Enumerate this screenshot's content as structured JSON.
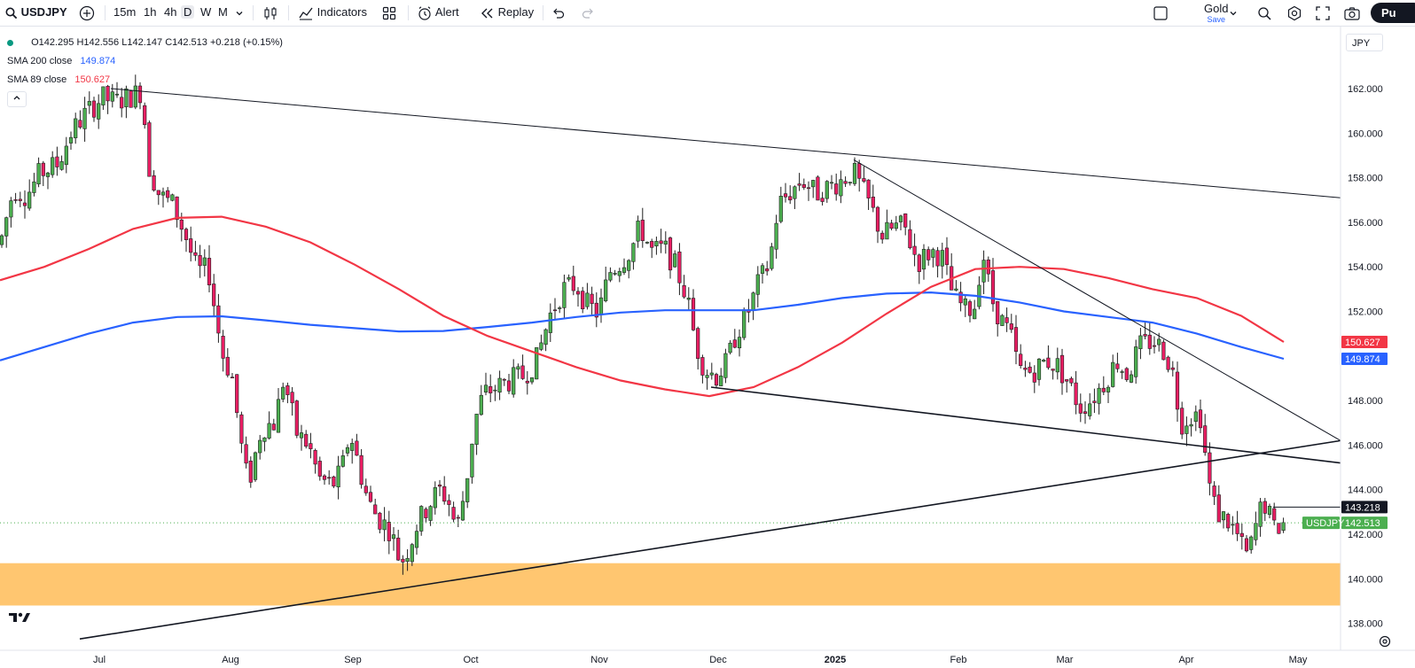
{
  "toolbar": {
    "symbol": "USDJPY",
    "timeframes": [
      "15m",
      "1h",
      "4h",
      "D",
      "W",
      "M"
    ],
    "active_timeframe": "D",
    "indicators_label": "Indicators",
    "alert_label": "Alert",
    "replay_label": "Replay",
    "layout_name": "Gold",
    "save_label": "Save",
    "publish_label": "Pu"
  },
  "legend": {
    "ohlc": {
      "o": "O142.295",
      "h": "H142.556",
      "l": "L142.147",
      "c": "C142.513",
      "chg": "+0.218 (+0.15%)"
    },
    "sma200": {
      "label": "SMA 200 close",
      "value": "149.874",
      "color": "#2962ff"
    },
    "sma89": {
      "label": "SMA 89 close",
      "value": "150.627",
      "color": "#f23645"
    }
  },
  "currency": "JPY",
  "colors": {
    "up": "#089981",
    "down": "#f23645",
    "body_up": "#4caf50",
    "body_down": "#e91e63",
    "zone": "#ffc670"
  },
  "chart_data": {
    "type": "candlestick",
    "y_ticks": [
      "162.000",
      "160.000",
      "158.000",
      "156.000",
      "154.000",
      "152.000",
      "150.000",
      "148.000",
      "146.000",
      "144.000",
      "142.000",
      "140.000",
      "138.000"
    ],
    "x_ticks": [
      "Jul",
      "Aug",
      "Sep",
      "Oct",
      "Nov",
      "Dec",
      "2025",
      "Feb",
      "Mar",
      "Apr",
      "May"
    ],
    "price_labels": {
      "sma89": "150.627",
      "sma200": "149.874",
      "line": "143.218",
      "symbol": "USDJPY",
      "last": "142.513"
    },
    "last_price": 142.513,
    "hline_price": 143.218,
    "zone": {
      "from": 138.8,
      "to": 140.7
    },
    "ylim": [
      137.2,
      163.6
    ],
    "series": [
      {
        "name": "SMA 200 close",
        "points": [
          [
            0,
            149.8
          ],
          [
            50,
            150.4
          ],
          [
            100,
            151.0
          ],
          [
            150,
            151.5
          ],
          [
            200,
            151.75
          ],
          [
            250,
            151.78
          ],
          [
            300,
            151.6
          ],
          [
            350,
            151.4
          ],
          [
            400,
            151.25
          ],
          [
            450,
            151.1
          ],
          [
            500,
            151.12
          ],
          [
            550,
            151.3
          ],
          [
            600,
            151.5
          ],
          [
            650,
            151.75
          ],
          [
            700,
            151.95
          ],
          [
            750,
            152.05
          ],
          [
            800,
            152.05
          ],
          [
            850,
            152.05
          ],
          [
            900,
            152.3
          ],
          [
            950,
            152.6
          ],
          [
            1000,
            152.8
          ],
          [
            1050,
            152.85
          ],
          [
            1100,
            152.7
          ],
          [
            1150,
            152.4
          ],
          [
            1200,
            152.0
          ],
          [
            1250,
            151.75
          ],
          [
            1300,
            151.5
          ],
          [
            1350,
            151.0
          ],
          [
            1400,
            150.4
          ],
          [
            1448,
            149.874
          ]
        ]
      },
      {
        "name": "SMA 89 close",
        "points": [
          [
            0,
            153.4
          ],
          [
            50,
            154.0
          ],
          [
            100,
            154.8
          ],
          [
            150,
            155.7
          ],
          [
            200,
            156.2
          ],
          [
            250,
            156.25
          ],
          [
            300,
            155.8
          ],
          [
            350,
            155.1
          ],
          [
            400,
            154.1
          ],
          [
            450,
            153.0
          ],
          [
            500,
            151.8
          ],
          [
            550,
            150.9
          ],
          [
            600,
            150.2
          ],
          [
            650,
            149.5
          ],
          [
            700,
            148.9
          ],
          [
            750,
            148.5
          ],
          [
            800,
            148.2
          ],
          [
            850,
            148.6
          ],
          [
            900,
            149.5
          ],
          [
            950,
            150.6
          ],
          [
            1000,
            151.9
          ],
          [
            1050,
            153.1
          ],
          [
            1100,
            153.9
          ],
          [
            1150,
            154.0
          ],
          [
            1200,
            153.9
          ],
          [
            1250,
            153.5
          ],
          [
            1300,
            153.0
          ],
          [
            1350,
            152.6
          ],
          [
            1400,
            151.8
          ],
          [
            1448,
            150.627
          ]
        ]
      }
    ],
    "trendlines": [
      {
        "from": [
          125,
          162.0
        ],
        "to": [
          1512,
          157.1
        ]
      },
      {
        "from": [
          963,
          158.8
        ],
        "to": [
          1512,
          146.2
        ]
      },
      {
        "from": [
          802,
          148.6
        ],
        "to": [
          1512,
          145.2
        ]
      },
      {
        "from": [
          90,
          137.3
        ],
        "to": [
          1512,
          146.2
        ]
      }
    ],
    "candles_path": [
      [
        0,
        155.0
      ],
      [
        15,
        157.5
      ],
      [
        30,
        157.2
      ],
      [
        45,
        158.2
      ],
      [
        65,
        158.6
      ],
      [
        80,
        160.0
      ],
      [
        95,
        160.8
      ],
      [
        115,
        161.6
      ],
      [
        130,
        161.4
      ],
      [
        150,
        161.7
      ],
      [
        160,
        161.9
      ],
      [
        168,
        158.5
      ],
      [
        180,
        157.2
      ],
      [
        195,
        156.8
      ],
      [
        210,
        155.3
      ],
      [
        222,
        153.8
      ],
      [
        235,
        153.9
      ],
      [
        250,
        150.2
      ],
      [
        262,
        149.0
      ],
      [
        272,
        146.0
      ],
      [
        280,
        144.2
      ],
      [
        295,
        146.8
      ],
      [
        310,
        147.0
      ],
      [
        320,
        149.0
      ],
      [
        335,
        146.5
      ],
      [
        348,
        146.0
      ],
      [
        360,
        144.5
      ],
      [
        375,
        144.2
      ],
      [
        385,
        144.8
      ],
      [
        395,
        146.6
      ],
      [
        405,
        145.0
      ],
      [
        415,
        143.5
      ],
      [
        425,
        142.8
      ],
      [
        440,
        142.2
      ],
      [
        452,
        140.7
      ],
      [
        462,
        141.5
      ],
      [
        470,
        142.4
      ],
      [
        480,
        143.1
      ],
      [
        495,
        144.0
      ],
      [
        505,
        143.6
      ],
      [
        515,
        142.2
      ],
      [
        525,
        144.1
      ],
      [
        535,
        147.0
      ],
      [
        545,
        148.3
      ],
      [
        560,
        148.6
      ],
      [
        575,
        148.9
      ],
      [
        590,
        149.1
      ],
      [
        605,
        149.8
      ],
      [
        620,
        151.8
      ],
      [
        635,
        153.0
      ],
      [
        650,
        153.2
      ],
      [
        662,
        152.3
      ],
      [
        675,
        151.9
      ],
      [
        688,
        153.8
      ],
      [
        700,
        154.2
      ],
      [
        712,
        154.8
      ],
      [
        722,
        155.8
      ],
      [
        735,
        154.7
      ],
      [
        750,
        154.8
      ],
      [
        762,
        154.0
      ],
      [
        775,
        152.6
      ],
      [
        785,
        150.5
      ],
      [
        795,
        149.4
      ],
      [
        808,
        149.1
      ],
      [
        820,
        149.7
      ],
      [
        830,
        151.0
      ],
      [
        842,
        151.8
      ],
      [
        855,
        153.2
      ],
      [
        868,
        154.2
      ],
      [
        878,
        156.8
      ],
      [
        890,
        157.3
      ],
      [
        905,
        157.9
      ],
      [
        920,
        157.3
      ],
      [
        935,
        157.6
      ],
      [
        950,
        157.9
      ],
      [
        962,
        158.3
      ],
      [
        972,
        157.5
      ],
      [
        982,
        156.7
      ],
      [
        995,
        155.4
      ],
      [
        1010,
        155.8
      ],
      [
        1020,
        155.8
      ],
      [
        1035,
        154.2
      ],
      [
        1050,
        154.7
      ],
      [
        1062,
        154.5
      ],
      [
        1075,
        152.7
      ],
      [
        1090,
        152.0
      ],
      [
        1100,
        152.3
      ],
      [
        1108,
        154.8
      ],
      [
        1118,
        152.6
      ],
      [
        1128,
        151.7
      ],
      [
        1140,
        150.9
      ],
      [
        1150,
        149.3
      ],
      [
        1165,
        149.3
      ],
      [
        1180,
        149.8
      ],
      [
        1192,
        149.6
      ],
      [
        1205,
        148.8
      ],
      [
        1218,
        147.7
      ],
      [
        1230,
        148.0
      ],
      [
        1245,
        148.8
      ],
      [
        1260,
        149.8
      ],
      [
        1272,
        149.1
      ],
      [
        1285,
        150.4
      ],
      [
        1300,
        150.7
      ],
      [
        1312,
        150.3
      ],
      [
        1322,
        149.4
      ],
      [
        1332,
        147.0
      ],
      [
        1345,
        147.4
      ],
      [
        1355,
        147.3
      ],
      [
        1362,
        144.5
      ],
      [
        1372,
        143.0
      ],
      [
        1385,
        142.6
      ],
      [
        1395,
        142.0
      ],
      [
        1405,
        141.0
      ],
      [
        1412,
        141.6
      ],
      [
        1420,
        143.0
      ],
      [
        1428,
        143.4
      ],
      [
        1436,
        142.2
      ],
      [
        1448,
        142.513
      ]
    ]
  }
}
